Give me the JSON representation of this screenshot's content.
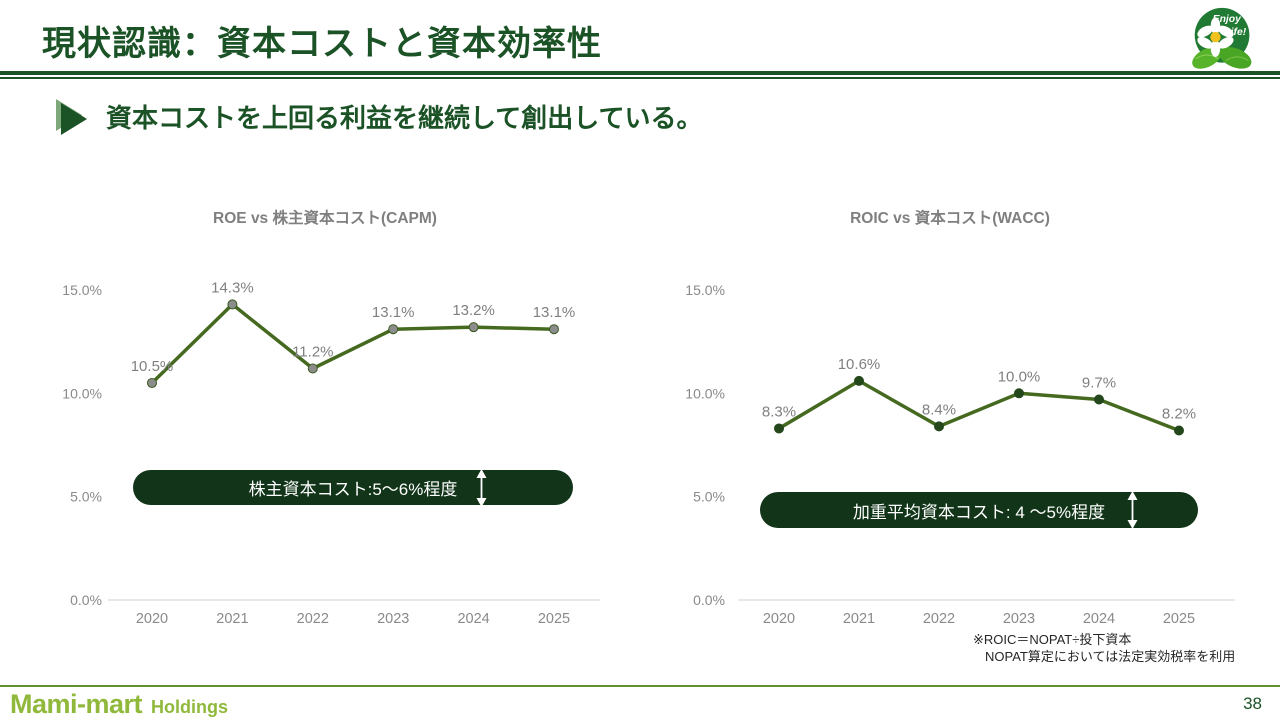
{
  "slide": {
    "title": "現状認識：資本コストと資本効率性",
    "subtitle": "資本コストを上回る利益を継続して創出している。",
    "page_number": "38",
    "footer": {
      "brand": "Mami-mart",
      "brand_suffix": "Holdings"
    },
    "logo": {
      "line1": "Enjoy",
      "line2": "Life!"
    },
    "footnote": {
      "line1": "※ROIC＝NOPAT÷投下資本",
      "line2": "NOPAT算定においては法定実効税率を利用"
    }
  },
  "colors": {
    "heading_green": "#1b5226",
    "line_green": "#44691f",
    "pill_green": "#12351a",
    "brand_green": "#90b93c",
    "axis_gray": "#d9d9d9",
    "label_gray": "#808080"
  },
  "chart_data": [
    {
      "type": "line",
      "title": "ROE vs 株主資本コスト(CAPM)",
      "categories": [
        "2020",
        "2021",
        "2022",
        "2023",
        "2024",
        "2025"
      ],
      "series": [
        {
          "name": "ROE",
          "values": [
            10.5,
            14.3,
            11.2,
            13.1,
            13.2,
            13.1
          ]
        }
      ],
      "labels": [
        "10.5%",
        "14.3%",
        "11.2%",
        "13.1%",
        "13.2%",
        "13.1%"
      ],
      "ylim": [
        0,
        15
      ],
      "yticks": [
        {
          "value": 0,
          "label": "0.0%"
        },
        {
          "value": 5,
          "label": "5.0%"
        },
        {
          "value": 10,
          "label": "10.0%"
        },
        {
          "value": 15,
          "label": "15.0%"
        }
      ],
      "grid": false,
      "legend": "none",
      "line_color": "#44691f",
      "marker_fill": "#8c8c8c",
      "marker_stroke": "#3a5a1c",
      "annotation": {
        "label": "株主資本コスト:5～6%程度",
        "range": [
          5,
          6
        ]
      }
    },
    {
      "type": "line",
      "title": "ROIC vs 資本コスト(WACC)",
      "categories": [
        "2020",
        "2021",
        "2022",
        "2023",
        "2024",
        "2025"
      ],
      "series": [
        {
          "name": "ROIC",
          "values": [
            8.3,
            10.6,
            8.4,
            10.0,
            9.7,
            8.2
          ]
        }
      ],
      "labels": [
        "8.3%",
        "10.6%",
        "8.4%",
        "10.0%",
        "9.7%",
        "8.2%"
      ],
      "ylim": [
        0,
        15
      ],
      "yticks": [
        {
          "value": 0,
          "label": "0.0%"
        },
        {
          "value": 5,
          "label": "5.0%"
        },
        {
          "value": 10,
          "label": "10.0%"
        },
        {
          "value": 15,
          "label": "15.0%"
        }
      ],
      "grid": false,
      "legend": "none",
      "line_color": "#44691f",
      "marker_fill": "#24481c",
      "marker_stroke": "#24481c",
      "annotation": {
        "label": "加重平均資本コスト: 4 ～5%程度",
        "range": [
          4,
          5
        ]
      }
    }
  ]
}
